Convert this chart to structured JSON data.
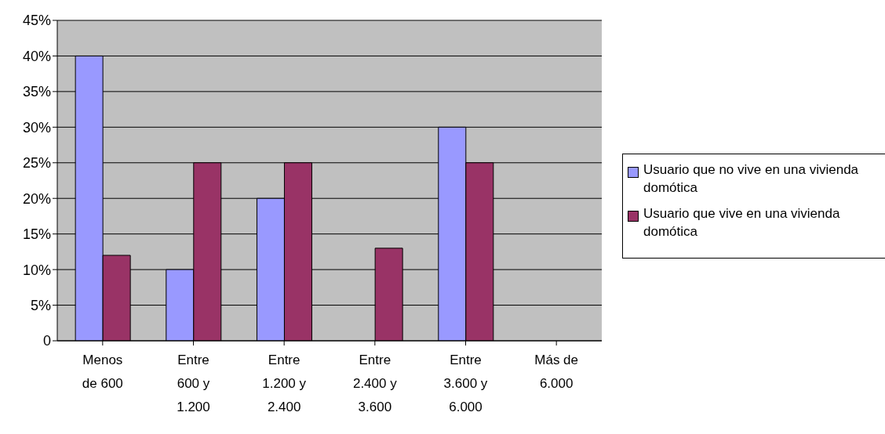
{
  "chart_data": {
    "type": "bar",
    "categories": [
      "Menos de 600",
      "Entre 600 y 1.200",
      "Entre 1.200 y 2.400",
      "Entre 2.400 y 3.600",
      "Entre 3.600 y 6.000",
      "Más de 6.000"
    ],
    "series": [
      {
        "name": "Usuario que no vive en una vivienda domótica",
        "color": "#9999ff",
        "values": [
          40,
          10,
          20,
          0,
          30,
          0
        ]
      },
      {
        "name": "Usuario que vive en una vivienda domótica",
        "color": "#993366",
        "values": [
          12,
          25,
          25,
          13,
          25,
          0
        ]
      }
    ],
    "ylim": [
      0,
      45
    ],
    "yticks": [
      {
        "value": 0,
        "label": "0"
      },
      {
        "value": 5,
        "label": "5%"
      },
      {
        "value": 10,
        "label": "10%"
      },
      {
        "value": 15,
        "label": "15%"
      },
      {
        "value": 20,
        "label": "20%"
      },
      {
        "value": 25,
        "label": "25%"
      },
      {
        "value": 30,
        "label": "30%"
      },
      {
        "value": 35,
        "label": "35%"
      },
      {
        "value": 40,
        "label": "40%"
      },
      {
        "value": 45,
        "label": "45%"
      }
    ],
    "grid": "y",
    "legend": "right"
  }
}
